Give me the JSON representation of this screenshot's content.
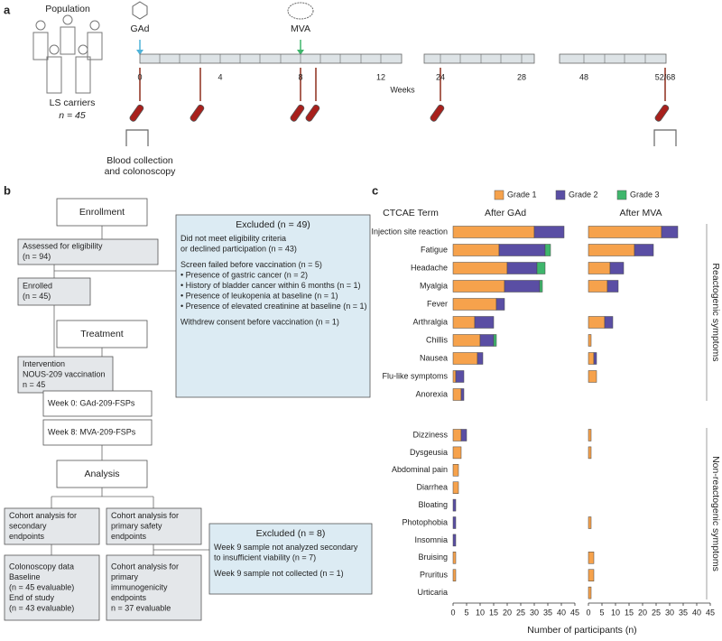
{
  "panel_a": {
    "label": "a",
    "population": "Population",
    "carriers": "LS carriers",
    "n": "n = 45",
    "vaccine_1": "GAd",
    "vaccine_2": "MVA",
    "timeline_labels": [
      "0",
      "4",
      "8",
      "12",
      "24",
      "28",
      "48",
      "52/68"
    ],
    "weeks": "Weeks",
    "collection": [
      "Blood collection",
      "and colonoscopy"
    ]
  },
  "panel_b": {
    "label": "b",
    "nodes": [
      {
        "lines": [
          "Enrollment"
        ]
      },
      {
        "lines": [
          "Assessed for eligibility",
          "(n = 94)"
        ]
      },
      {
        "lines": [
          "Excluded (n = 49)",
          "Did not meet eligibility criteria",
          "or declined participation (n = 43)",
          "Screen failed before vaccination (n = 5)",
          "• Presence of gastric cancer (n = 2)",
          "• History of bladder cancer within 6 months (n = 1)",
          "• Presence of leukopenia at baseline (n = 1)",
          "• Presence of elevated creatinine at baseline (n = 1)",
          "Withdrew consent before vaccination (n = 1)"
        ]
      },
      {
        "lines": [
          "Enrolled",
          "(n = 45)"
        ]
      },
      {
        "lines": [
          "Treatment"
        ]
      },
      {
        "lines": [
          "Intervention",
          "NOUS-209 vaccination",
          "n = 45"
        ]
      },
      {
        "lines": [
          "Week 0: GAd-209-FSPs"
        ]
      },
      {
        "lines": [
          "Week 8: MVA-209-FSPs"
        ]
      },
      {
        "lines": [
          "Analysis"
        ]
      },
      {
        "lines": [
          "Cohort analysis for",
          "secondary",
          "endpoints"
        ]
      },
      {
        "lines": [
          "Cohort analysis for",
          "primary safety",
          "endpoints"
        ]
      },
      {
        "lines": [
          "Colonoscopy data",
          "Baseline",
          "(n = 45 evaluable)",
          "End of study",
          "(n = 43 evaluable)"
        ]
      },
      {
        "lines": [
          "Cohort analysis for",
          "primary",
          "immunogenicity",
          "endpoints",
          "n = 37 evaluable"
        ]
      },
      {
        "lines": [
          "Excluded (n = 8)",
          "Week 9 sample not analyzed secondary",
          "to insufficient viability (n = 7)",
          "Week 9 sample not collected (n = 1)"
        ]
      }
    ]
  },
  "panel_c": {
    "label": "c",
    "term_header": "CTCAE Term",
    "groups": [
      "Reactogenic symptoms",
      "Non-reactogenic symptoms"
    ],
    "xlabel": "Number of participants (n)"
  },
  "chart_data": [
    {
      "type": "bar",
      "orientation": "horizontal",
      "stacked": true,
      "title": "After GAd",
      "categories": [
        "Injection site reaction",
        "Fatigue",
        "Headache",
        "Myalgia",
        "Fever",
        "Arthralgia",
        "Chillis",
        "Nausea",
        "Flu-like symptoms",
        "Anorexia",
        "Dizziness",
        "Dysgeusia",
        "Abdominal pain",
        "Diarrhea",
        "Bloating",
        "Photophobia",
        "Insomnia",
        "Bruising",
        "Pruritus",
        "Urticaria"
      ],
      "series": [
        {
          "name": "Grade 1",
          "color": "#f6a24c",
          "values": [
            30,
            17,
            20,
            19,
            16,
            8,
            10,
            9,
            1,
            3,
            3,
            3,
            2,
            2,
            0,
            0,
            0,
            1,
            1,
            0
          ]
        },
        {
          "name": "Grade 2",
          "color": "#5a4ea4",
          "values": [
            11,
            17,
            11,
            13,
            3,
            7,
            5,
            2,
            3,
            1,
            2,
            0,
            0,
            0,
            1,
            1,
            1,
            0,
            0,
            0
          ]
        },
        {
          "name": "Grade 3",
          "color": "#3fb66c",
          "values": [
            0,
            2,
            3,
            1,
            0,
            0,
            1,
            0,
            0,
            0,
            0,
            0,
            0,
            0,
            0,
            0,
            0,
            0,
            0,
            0
          ]
        }
      ],
      "xlim": [
        0,
        45
      ],
      "xticks": [
        0,
        5,
        10,
        15,
        20,
        25,
        30,
        35,
        40,
        45
      ]
    },
    {
      "type": "bar",
      "orientation": "horizontal",
      "stacked": true,
      "title": "After MVA",
      "series": [
        {
          "color": "#f6a24c",
          "values": [
            27,
            17,
            8,
            7,
            0,
            6,
            1,
            2,
            3,
            0,
            1,
            1,
            0,
            0,
            0,
            1,
            0,
            2,
            2,
            1
          ]
        },
        {
          "color": "#5a4ea4",
          "values": [
            6,
            7,
            5,
            4,
            0,
            3,
            0,
            1,
            0,
            0,
            0,
            0,
            0,
            0,
            0,
            0,
            0,
            0,
            0,
            0
          ]
        },
        {
          "color": "#3fb66c",
          "values": [
            0,
            0,
            0,
            0,
            0,
            0,
            0,
            0,
            0,
            0,
            0,
            0,
            0,
            0,
            0,
            0,
            0,
            0,
            0,
            0
          ]
        }
      ],
      "xlim": [
        0,
        45
      ],
      "xticks": [
        0,
        5,
        10,
        15,
        20,
        25,
        30,
        35,
        40,
        45
      ]
    }
  ]
}
